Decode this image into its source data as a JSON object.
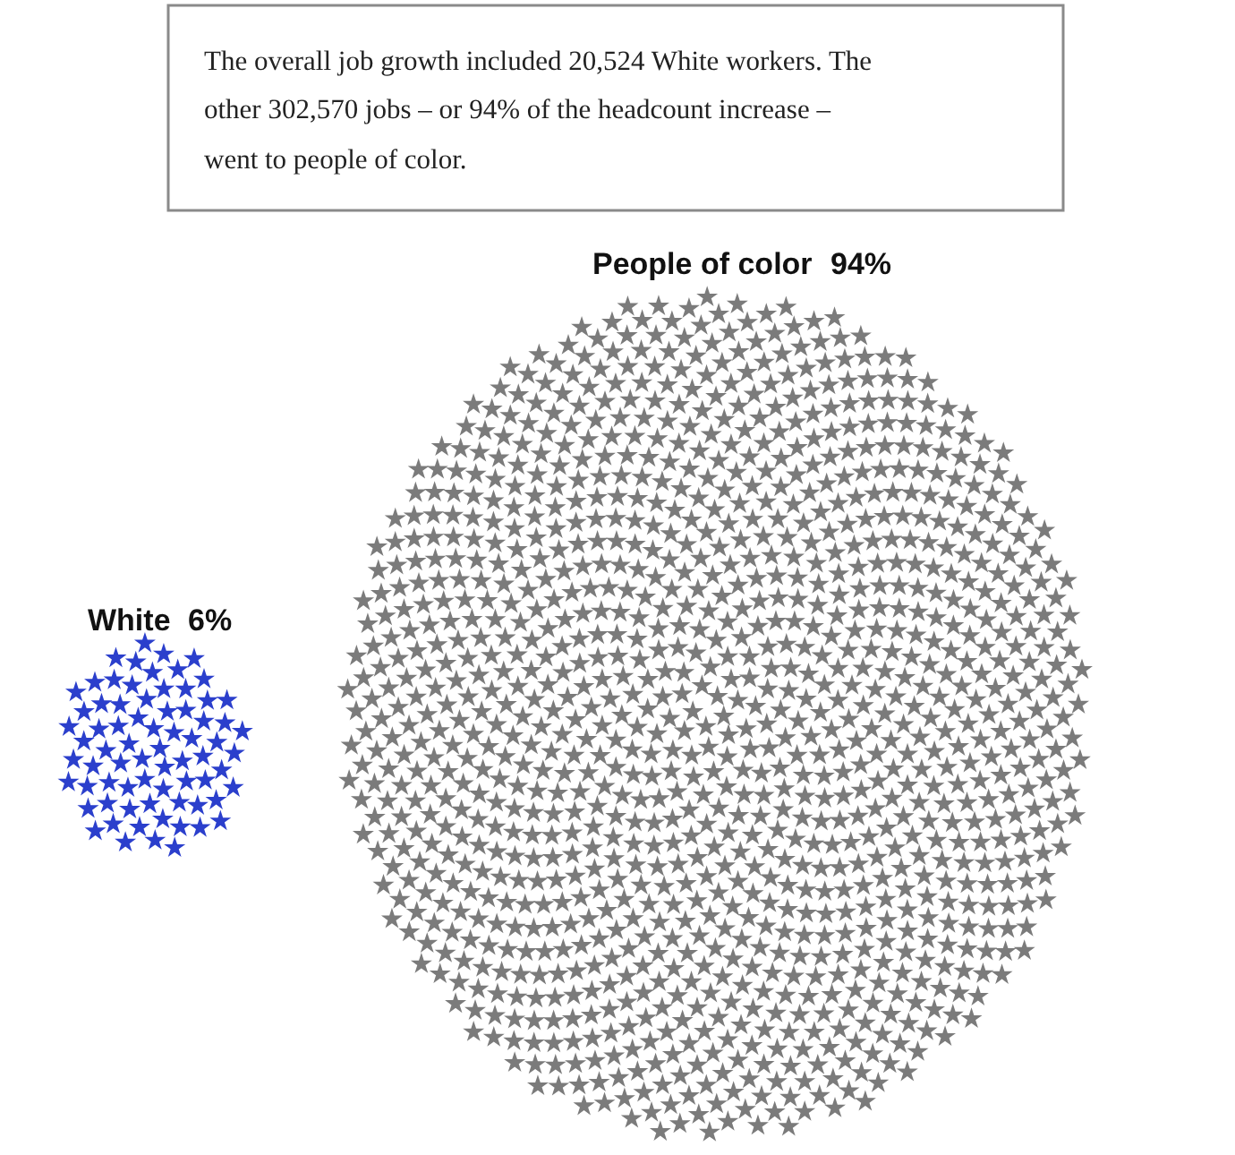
{
  "chart_data": {
    "type": "other",
    "title": "The overall job growth included 20,524 White workers. The other 302,570 jobs – or 94% of the headcount increase – went to people of color.",
    "categories": [
      "White",
      "People of color"
    ],
    "values": [
      6,
      94
    ],
    "value_labels": [
      "6%",
      "94%"
    ],
    "colors": [
      "#2b3fcc",
      "#7b7b7b"
    ]
  }
}
